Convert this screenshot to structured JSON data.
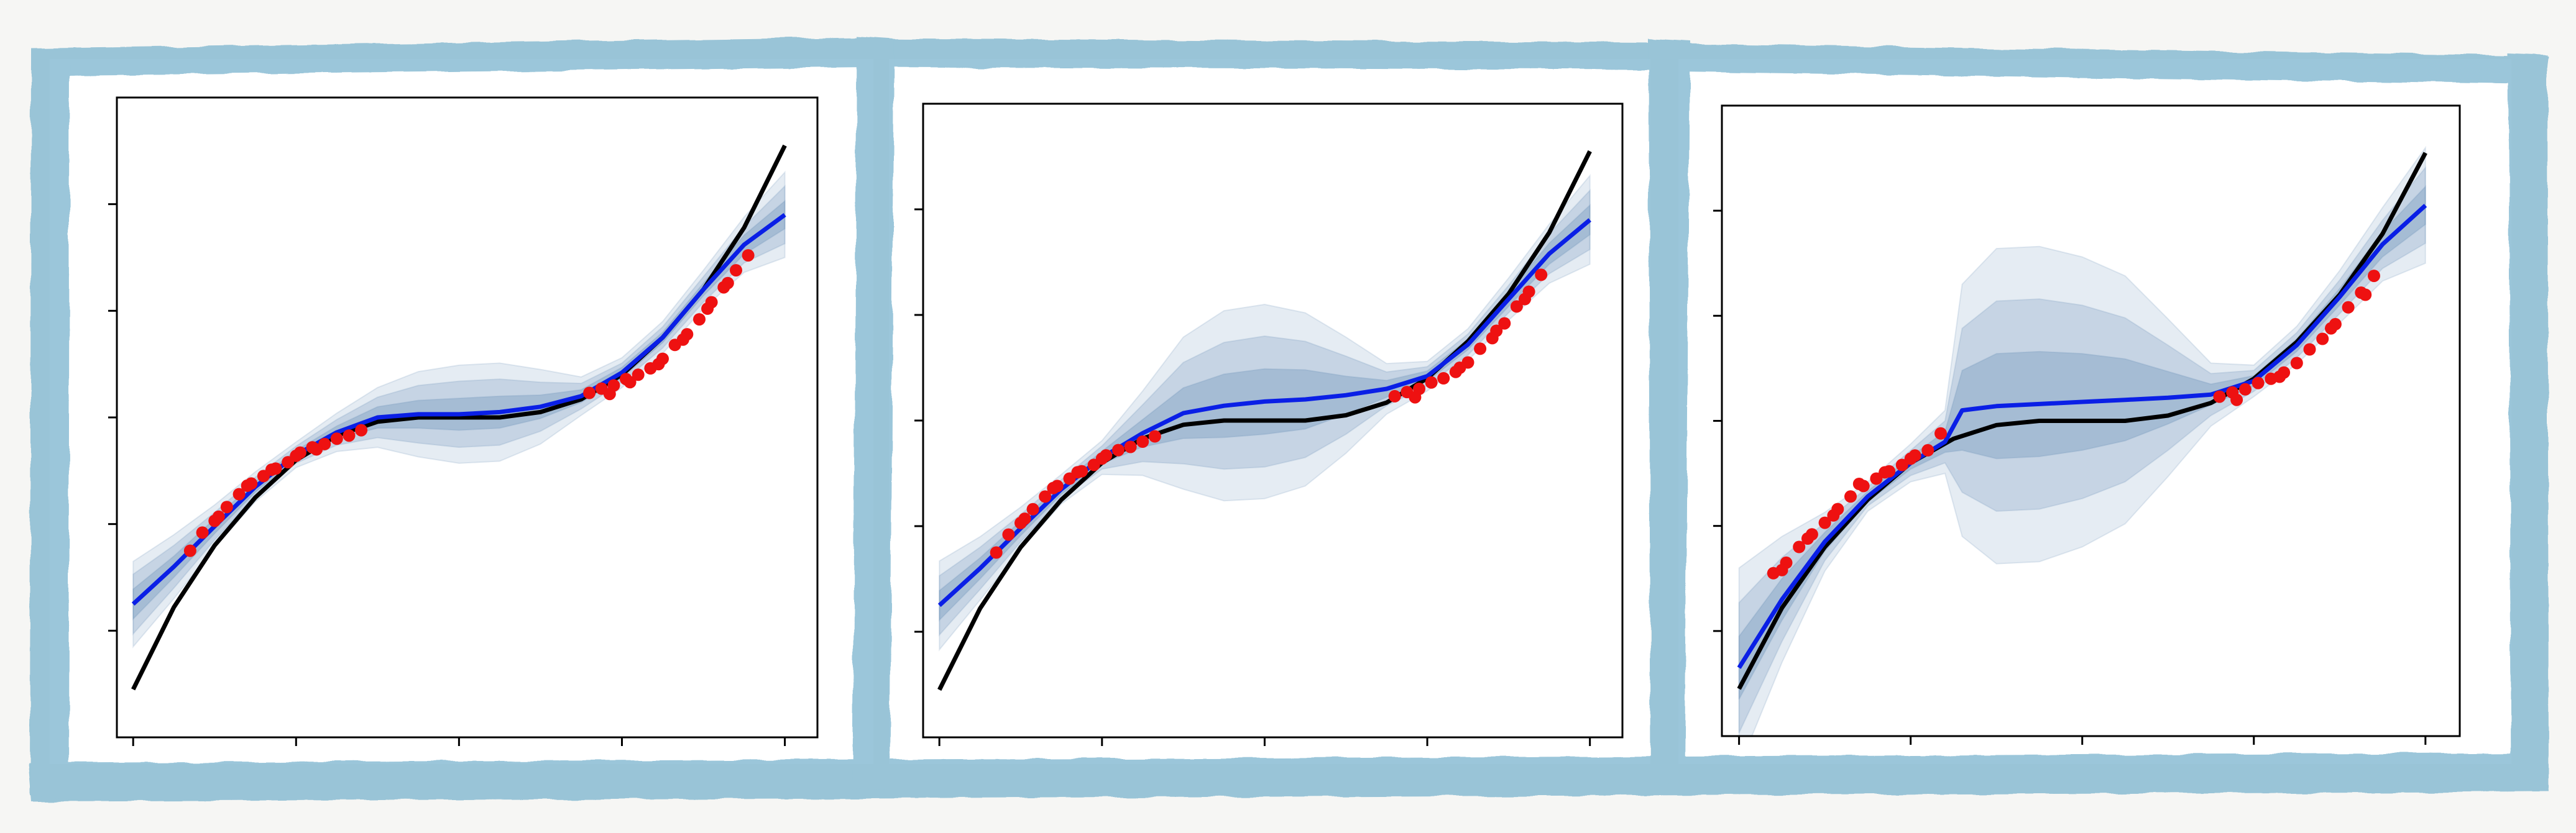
{
  "colors": {
    "frame": "#7fb7d0",
    "paper": "#ffffff",
    "background": "#f6f6f4",
    "true_function": "#000000",
    "mean_prediction": "#0a1fe6",
    "observations": "#ee1111",
    "uncertainty_band": "#4a78a8"
  },
  "chart_data": [
    {
      "type": "line",
      "title": "",
      "xlabel": "",
      "ylabel": "",
      "xlim": [
        -4.2,
        4.4
      ],
      "ylim": [
        -3.0,
        3.0
      ],
      "xticks": [
        -4,
        -2,
        0,
        2,
        4
      ],
      "yticks": [
        -2,
        -1,
        0,
        1,
        2
      ],
      "tick_labels_visible": false,
      "grid": false,
      "legend": "none",
      "true_function": {
        "x": [
          -4,
          -3.5,
          -3,
          -2.5,
          -2,
          -1.5,
          -1,
          -0.5,
          0,
          0.5,
          1,
          1.5,
          2,
          2.5,
          3,
          3.5,
          4
        ],
        "y": [
          -2.55,
          -1.78,
          -1.2,
          -0.75,
          -0.4,
          -0.17,
          -0.04,
          0.0,
          0.0,
          0.0,
          0.05,
          0.17,
          0.4,
          0.75,
          1.2,
          1.78,
          2.55
        ]
      },
      "mean_prediction": {
        "x": [
          -4,
          -3.5,
          -3,
          -2.5,
          -2,
          -1.5,
          -1,
          -0.5,
          0,
          0.5,
          1,
          1.5,
          2,
          2.5,
          3,
          3.5,
          4
        ],
        "y": [
          -1.75,
          -1.4,
          -1.02,
          -0.65,
          -0.35,
          -0.14,
          0.0,
          0.03,
          0.03,
          0.05,
          0.1,
          0.2,
          0.42,
          0.75,
          1.2,
          1.62,
          1.9
        ]
      },
      "bands": [
        {
          "x": [
            -4,
            -3.5,
            -3,
            -2.5,
            -2,
            -1.5,
            -1,
            -0.5,
            0,
            0.5,
            1,
            1.5,
            2,
            2.5,
            3,
            3.5,
            4
          ],
          "half_width": [
            0.4,
            0.3,
            0.2,
            0.14,
            0.12,
            0.18,
            0.28,
            0.4,
            0.46,
            0.46,
            0.35,
            0.18,
            0.14,
            0.15,
            0.18,
            0.26,
            0.4
          ]
        },
        {
          "x": [
            -4,
            -3.5,
            -3,
            -2.5,
            -2,
            -1.5,
            -1,
            -0.5,
            0,
            0.5,
            1,
            1.5,
            2,
            2.5,
            3,
            3.5,
            4
          ],
          "half_width": [
            0.28,
            0.2,
            0.13,
            0.09,
            0.08,
            0.12,
            0.19,
            0.27,
            0.31,
            0.31,
            0.23,
            0.12,
            0.09,
            0.1,
            0.12,
            0.17,
            0.27
          ]
        },
        {
          "x": [
            -4,
            -3.5,
            -3,
            -2.5,
            -2,
            -1.5,
            -1,
            -0.5,
            0,
            0.5,
            1,
            1.5,
            2,
            2.5,
            3,
            3.5,
            4
          ],
          "half_width": [
            0.14,
            0.1,
            0.07,
            0.05,
            0.04,
            0.06,
            0.1,
            0.13,
            0.15,
            0.15,
            0.11,
            0.06,
            0.05,
            0.05,
            0.06,
            0.09,
            0.13
          ]
        }
      ],
      "observations": {
        "x": [
          -3.3,
          -3.15,
          -3.0,
          -2.85,
          -2.7,
          -2.55,
          -2.4,
          -2.25,
          -2.1,
          -1.95,
          -1.8,
          -1.65,
          -1.5,
          -1.35,
          -1.2,
          -2.95,
          -2.6,
          -2.3,
          -2.0,
          -1.75,
          1.6,
          1.75,
          1.9,
          2.05,
          2.2,
          2.35,
          2.5,
          2.65,
          2.8,
          2.95,
          3.1,
          3.25,
          3.4,
          3.55,
          1.85,
          2.1,
          2.45,
          2.75,
          3.05,
          3.3
        ],
        "y": [
          -1.25,
          -1.08,
          -0.97,
          -0.84,
          -0.72,
          -0.62,
          -0.55,
          -0.48,
          -0.42,
          -0.33,
          -0.28,
          -0.25,
          -0.2,
          -0.17,
          -0.12,
          -0.93,
          -0.64,
          -0.49,
          -0.36,
          -0.3,
          0.23,
          0.27,
          0.3,
          0.36,
          0.4,
          0.46,
          0.55,
          0.68,
          0.78,
          0.92,
          1.08,
          1.22,
          1.38,
          1.52,
          0.22,
          0.33,
          0.5,
          0.73,
          1.02,
          1.26
        ]
      }
    },
    {
      "type": "line",
      "title": "",
      "xlabel": "",
      "ylabel": "",
      "xlim": [
        -4.2,
        4.4
      ],
      "ylim": [
        -3.0,
        3.0
      ],
      "xticks": [
        -4,
        -2,
        0,
        2,
        4
      ],
      "yticks": [
        -2,
        -1,
        0,
        1,
        2
      ],
      "tick_labels_visible": false,
      "grid": false,
      "legend": "none",
      "true_function": {
        "x": [
          -4,
          -3.5,
          -3,
          -2.5,
          -2,
          -1.5,
          -1,
          -0.5,
          0,
          0.5,
          1,
          1.5,
          2,
          2.5,
          3,
          3.5,
          4
        ],
        "y": [
          -2.55,
          -1.78,
          -1.2,
          -0.75,
          -0.4,
          -0.17,
          -0.04,
          0.0,
          0.0,
          0.0,
          0.05,
          0.17,
          0.4,
          0.75,
          1.2,
          1.78,
          2.55
        ]
      },
      "mean_prediction": {
        "x": [
          -4,
          -3.5,
          -3,
          -2.5,
          -2,
          -1.5,
          -1,
          -0.5,
          0,
          0.5,
          1,
          1.5,
          2,
          2.5,
          3,
          3.5,
          4
        ],
        "y": [
          -1.75,
          -1.4,
          -1.02,
          -0.65,
          -0.35,
          -0.12,
          0.07,
          0.14,
          0.18,
          0.2,
          0.24,
          0.3,
          0.42,
          0.72,
          1.15,
          1.58,
          1.9
        ]
      },
      "bands": [
        {
          "x": [
            -4,
            -3.5,
            -3,
            -2.5,
            -2,
            -1.5,
            -1,
            -0.5,
            0,
            0.5,
            1,
            1.5,
            2,
            2.5,
            3,
            3.5,
            4
          ],
          "half_width": [
            0.42,
            0.3,
            0.2,
            0.14,
            0.16,
            0.4,
            0.72,
            0.9,
            0.92,
            0.82,
            0.55,
            0.24,
            0.14,
            0.15,
            0.2,
            0.28,
            0.42
          ]
        },
        {
          "x": [
            -4,
            -3.5,
            -3,
            -2.5,
            -2,
            -1.5,
            -1,
            -0.5,
            0,
            0.5,
            1,
            1.5,
            2,
            2.5,
            3,
            3.5,
            4
          ],
          "half_width": [
            0.28,
            0.2,
            0.13,
            0.09,
            0.11,
            0.27,
            0.48,
            0.6,
            0.62,
            0.55,
            0.37,
            0.16,
            0.09,
            0.1,
            0.13,
            0.19,
            0.28
          ]
        },
        {
          "x": [
            -4,
            -3.5,
            -3,
            -2.5,
            -2,
            -1.5,
            -1,
            -0.5,
            0,
            0.5,
            1,
            1.5,
            2,
            2.5,
            3,
            3.5,
            4
          ],
          "half_width": [
            0.14,
            0.1,
            0.07,
            0.05,
            0.06,
            0.13,
            0.24,
            0.3,
            0.31,
            0.28,
            0.18,
            0.08,
            0.05,
            0.05,
            0.07,
            0.1,
            0.14
          ]
        }
      ],
      "observations": {
        "x": [
          -3.3,
          -3.15,
          -3.0,
          -2.85,
          -2.7,
          -2.55,
          -2.4,
          -2.25,
          -2.1,
          -1.95,
          -1.8,
          -1.65,
          -1.5,
          -1.35,
          -2.95,
          -2.6,
          -2.3,
          -2.0,
          1.6,
          1.75,
          1.9,
          2.05,
          2.2,
          2.35,
          2.5,
          2.65,
          2.8,
          2.95,
          3.1,
          3.25,
          3.4,
          1.85,
          2.4,
          2.85,
          3.2
        ],
        "y": [
          -1.25,
          -1.08,
          -0.97,
          -0.84,
          -0.72,
          -0.62,
          -0.55,
          -0.48,
          -0.42,
          -0.33,
          -0.28,
          -0.25,
          -0.2,
          -0.15,
          -0.93,
          -0.64,
          -0.49,
          -0.36,
          0.23,
          0.27,
          0.3,
          0.36,
          0.4,
          0.46,
          0.55,
          0.68,
          0.78,
          0.92,
          1.08,
          1.22,
          1.38,
          0.22,
          0.5,
          0.85,
          1.15
        ]
      }
    },
    {
      "type": "line",
      "title": "",
      "xlabel": "",
      "ylabel": "",
      "xlim": [
        -4.2,
        4.4
      ],
      "ylim": [
        -3.0,
        3.0
      ],
      "xticks": [
        -4,
        -2,
        0,
        2,
        4
      ],
      "yticks": [
        -2,
        -1,
        0,
        1,
        2
      ],
      "tick_labels_visible": false,
      "grid": false,
      "legend": "none",
      "true_function": {
        "x": [
          -4,
          -3.5,
          -3,
          -2.5,
          -2,
          -1.5,
          -1,
          -0.5,
          0,
          0.5,
          1,
          1.5,
          2,
          2.5,
          3,
          3.5,
          4
        ],
        "y": [
          -2.55,
          -1.78,
          -1.2,
          -0.75,
          -0.4,
          -0.17,
          -0.04,
          0.0,
          0.0,
          0.0,
          0.05,
          0.17,
          0.4,
          0.75,
          1.2,
          1.78,
          2.55
        ]
      },
      "mean_prediction": {
        "x": [
          -4,
          -3.5,
          -3,
          -2.5,
          -2,
          -1.6,
          -1.4,
          -1.0,
          -0.5,
          0,
          0.5,
          1,
          1.5,
          2,
          2.5,
          3,
          3.5,
          4
        ],
        "y": [
          -2.35,
          -1.7,
          -1.15,
          -0.72,
          -0.4,
          -0.2,
          0.1,
          0.14,
          0.16,
          0.18,
          0.2,
          0.22,
          0.25,
          0.38,
          0.72,
          1.18,
          1.68,
          2.05
        ]
      },
      "bands": [
        {
          "x": [
            -4,
            -3.5,
            -3,
            -2.5,
            -2,
            -1.6,
            -1.4,
            -1.0,
            -0.5,
            0,
            0.5,
            1,
            1.5,
            2,
            2.5,
            3,
            3.5,
            4
          ],
          "half_width": [
            0.95,
            0.6,
            0.28,
            0.14,
            0.18,
            0.3,
            1.2,
            1.5,
            1.5,
            1.38,
            1.18,
            0.75,
            0.3,
            0.15,
            0.18,
            0.25,
            0.35,
            0.55
          ]
        },
        {
          "x": [
            -4,
            -3.5,
            -3,
            -2.5,
            -2,
            -1.6,
            -1.4,
            -1.0,
            -0.5,
            0,
            0.5,
            1,
            1.5,
            2,
            2.5,
            3,
            3.5,
            4
          ],
          "half_width": [
            0.62,
            0.4,
            0.18,
            0.09,
            0.12,
            0.2,
            0.78,
            1.0,
            1.0,
            0.92,
            0.78,
            0.5,
            0.2,
            0.1,
            0.12,
            0.16,
            0.23,
            0.36
          ]
        },
        {
          "x": [
            -4,
            -3.5,
            -3,
            -2.5,
            -2,
            -1.6,
            -1.4,
            -1.0,
            -0.5,
            0,
            0.5,
            1,
            1.5,
            2,
            2.5,
            3,
            3.5,
            4
          ],
          "half_width": [
            0.3,
            0.2,
            0.09,
            0.05,
            0.06,
            0.1,
            0.38,
            0.5,
            0.5,
            0.46,
            0.39,
            0.25,
            0.1,
            0.05,
            0.06,
            0.08,
            0.12,
            0.18
          ]
        }
      ],
      "observations": {
        "x": [
          -3.6,
          -3.45,
          -3.3,
          -3.15,
          -3.0,
          -2.85,
          -2.7,
          -2.55,
          -2.4,
          -2.25,
          -2.1,
          -1.95,
          -1.8,
          -1.65,
          -3.5,
          -3.2,
          -2.9,
          -2.6,
          -2.3,
          -2.0,
          1.6,
          1.75,
          1.9,
          2.05,
          2.2,
          2.35,
          2.5,
          2.65,
          2.8,
          2.95,
          3.1,
          3.25,
          3.4,
          1.8,
          2.3,
          2.9,
          3.3
        ],
        "y": [
          -1.45,
          -1.35,
          -1.2,
          -1.08,
          -0.97,
          -0.84,
          -0.72,
          -0.62,
          -0.55,
          -0.48,
          -0.42,
          -0.33,
          -0.28,
          -0.12,
          -1.42,
          -1.12,
          -0.9,
          -0.6,
          -0.49,
          -0.36,
          0.23,
          0.27,
          0.3,
          0.36,
          0.4,
          0.46,
          0.55,
          0.68,
          0.78,
          0.92,
          1.08,
          1.22,
          1.38,
          0.2,
          0.42,
          0.88,
          1.2
        ]
      }
    }
  ]
}
